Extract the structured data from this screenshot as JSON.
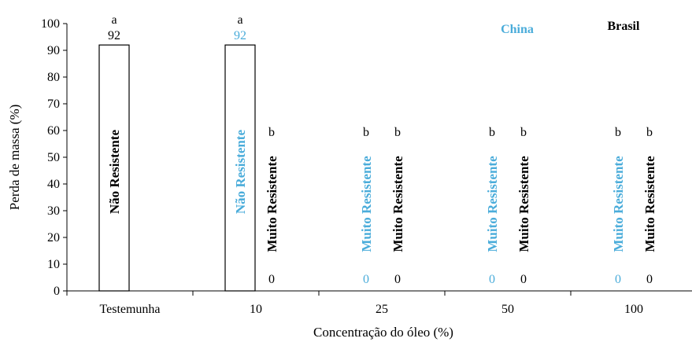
{
  "chart_data": {
    "type": "bar",
    "categories": [
      "Testemunha",
      "10",
      "25",
      "50",
      "100"
    ],
    "xlabel": "Concentração do óleo (%)",
    "ylabel": "Perda de massa (%)",
    "ylim": [
      0,
      100
    ],
    "yticks": [
      "0",
      "10",
      "20",
      "30",
      "40",
      "50",
      "60",
      "70",
      "80",
      "90",
      "100"
    ],
    "grid": false,
    "legend_position": "top-right",
    "series": [
      {
        "name": "China",
        "color": "#4AACDA",
        "values": [
          92,
          92,
          0,
          0,
          0
        ],
        "value_labels": [
          "92",
          "92",
          "0",
          "0",
          "0"
        ],
        "letters": [
          "a",
          "a",
          "b",
          "b",
          "b"
        ],
        "classes": [
          "Não Resistente",
          "Não Resistente",
          "Muito Resistente",
          "Muito Resistente",
          "Muito Resistente"
        ]
      },
      {
        "name": "Brasil",
        "color": "#000000",
        "values": [
          null,
          0,
          0,
          0,
          0
        ],
        "value_labels": [
          null,
          "0",
          "0",
          "0",
          "0"
        ],
        "letters": [
          null,
          "b",
          "b",
          "b",
          "b"
        ],
        "classes": [
          null,
          "Muito Resistente",
          "Muito Resistente",
          "Muito Resistente",
          "Muito Resistente"
        ]
      }
    ]
  }
}
